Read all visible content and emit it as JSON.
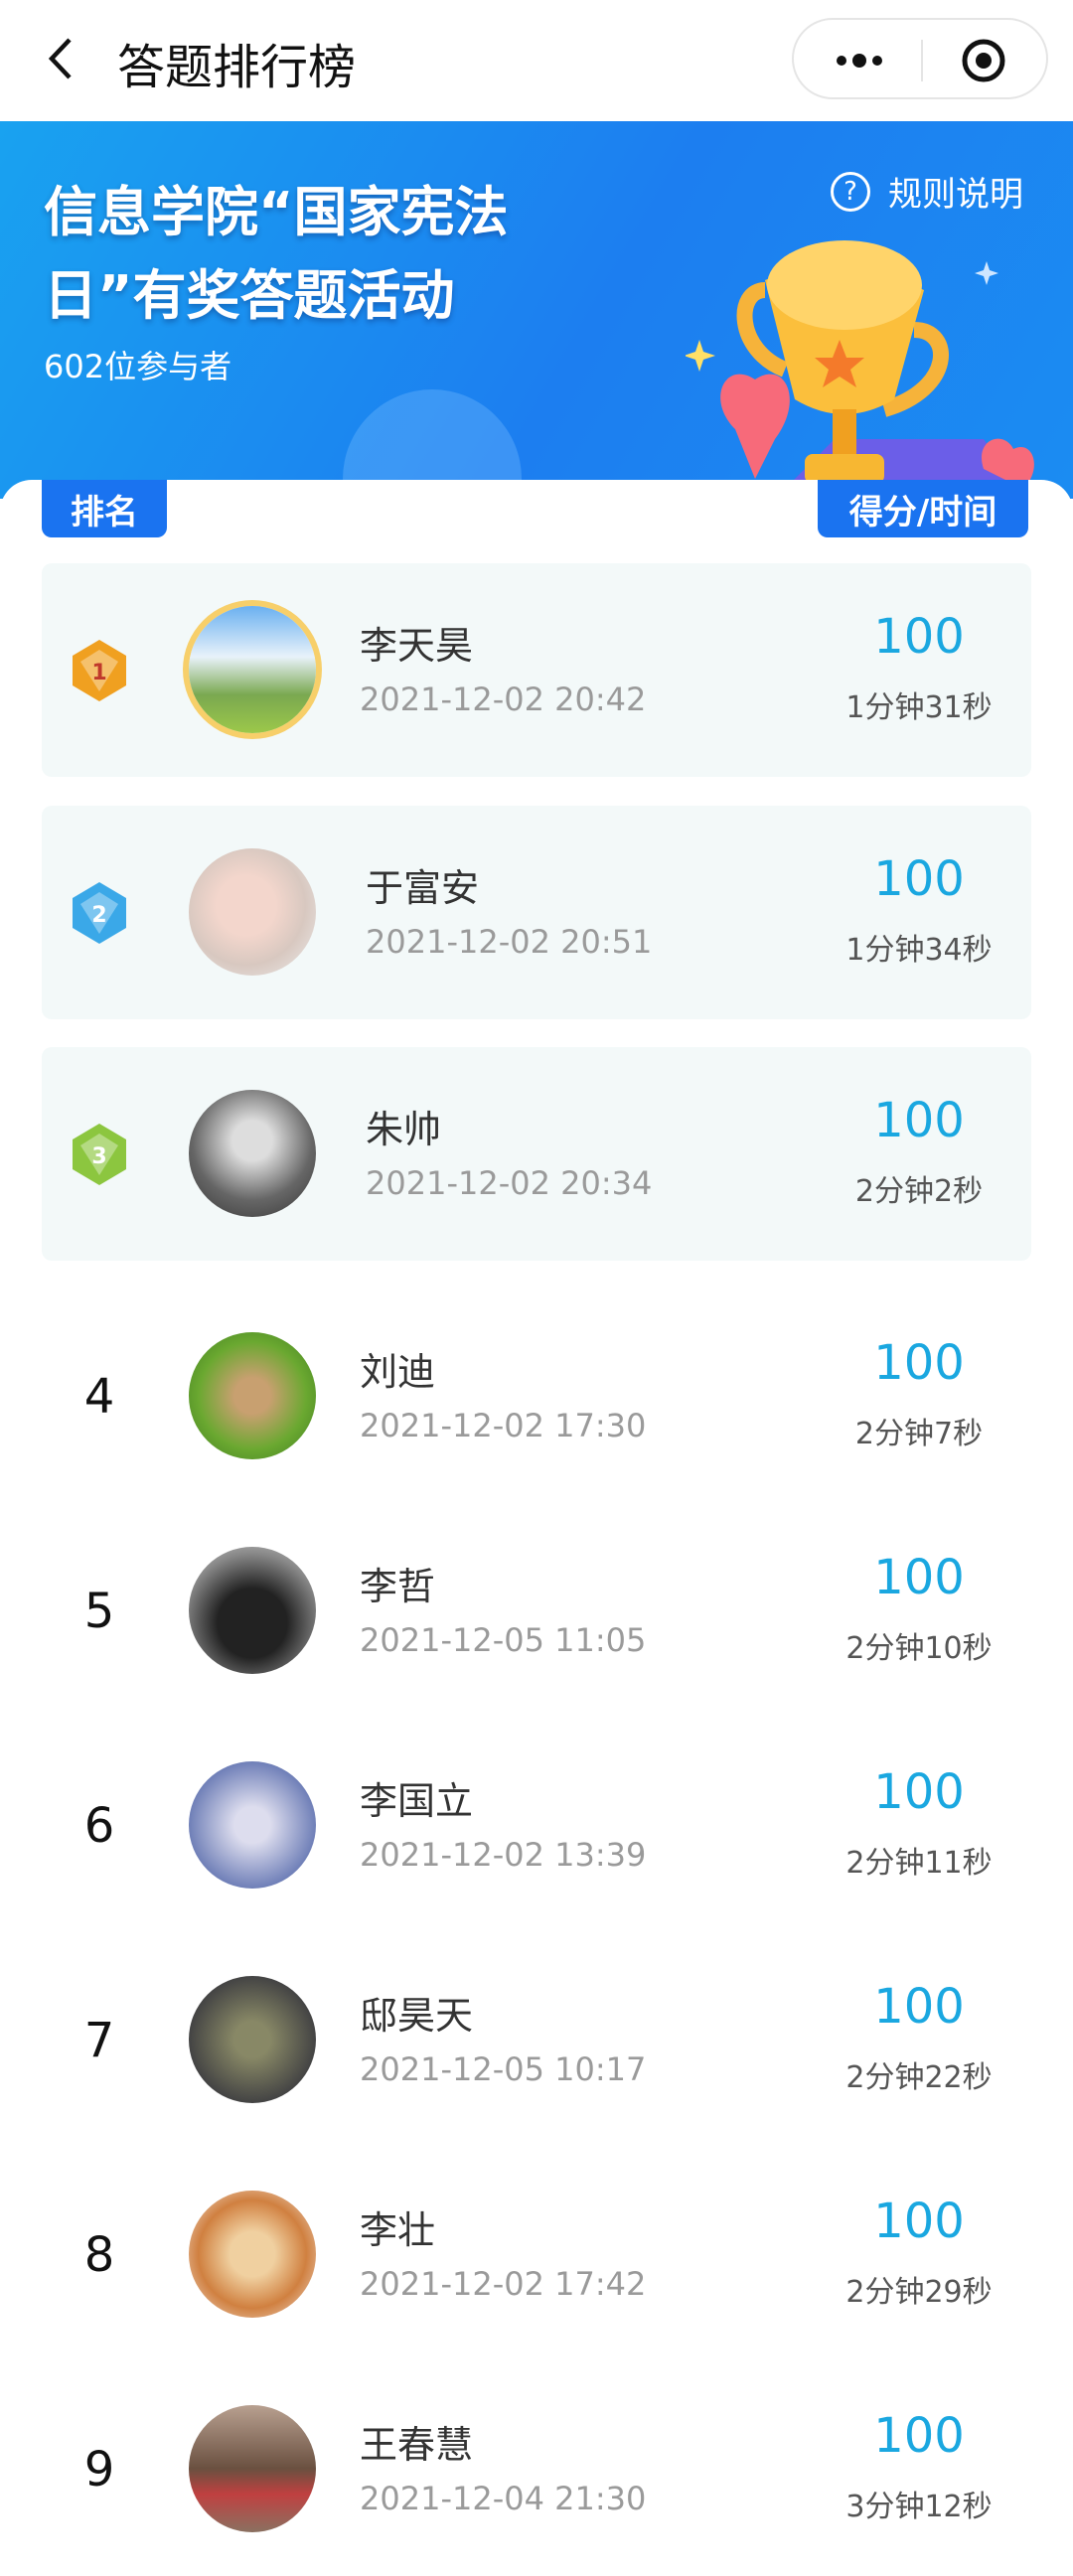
{
  "nav": {
    "title": "答题排行榜",
    "back_icon": "chevron-left-icon",
    "more_icon": "more-dots-icon",
    "close_icon": "target-circle-icon"
  },
  "banner": {
    "title_line1": "信息学院“国家宪法",
    "title_line2": "日”有奖答题活动",
    "participants": "602位参与者",
    "rules_label": "规则说明",
    "rules_icon": "?"
  },
  "headers": {
    "rank": "排名",
    "score_time": "得分/时间"
  },
  "colors": {
    "accent": "#1a73f0",
    "score": "#1aa7e0",
    "gold": "#f0a020",
    "silver": "#3aa8e8",
    "bronze": "#8cc63f"
  },
  "rows": [
    {
      "rank": "1",
      "name": "李天昊",
      "date": "2021-12-02 20:42",
      "score": "100",
      "time": "1分钟31秒"
    },
    {
      "rank": "2",
      "name": "于富安",
      "date": "2021-12-02 20:51",
      "score": "100",
      "time": "1分钟34秒"
    },
    {
      "rank": "3",
      "name": "朱帅",
      "date": "2021-12-02 20:34",
      "score": "100",
      "time": "2分钟2秒"
    },
    {
      "rank": "4",
      "name": "刘迪",
      "date": "2021-12-02 17:30",
      "score": "100",
      "time": "2分钟7秒"
    },
    {
      "rank": "5",
      "name": "李哲",
      "date": "2021-12-05 11:05",
      "score": "100",
      "time": "2分钟10秒"
    },
    {
      "rank": "6",
      "name": "李国立",
      "date": "2021-12-02 13:39",
      "score": "100",
      "time": "2分钟11秒"
    },
    {
      "rank": "7",
      "name": "邸昊天",
      "date": "2021-12-05 10:17",
      "score": "100",
      "time": "2分钟22秒"
    },
    {
      "rank": "8",
      "name": "李壮",
      "date": "2021-12-02 17:42",
      "score": "100",
      "time": "2分钟29秒"
    },
    {
      "rank": "9",
      "name": "王春慧",
      "date": "2021-12-04 21:30",
      "score": "100",
      "time": "3分钟12秒"
    }
  ]
}
